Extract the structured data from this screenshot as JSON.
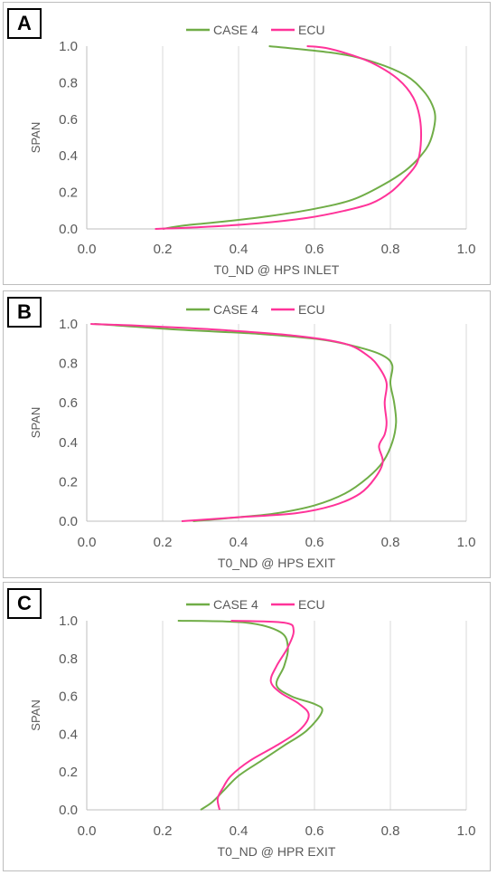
{
  "panels": [
    {
      "label": "A"
    },
    {
      "label": "B"
    },
    {
      "label": "C"
    }
  ],
  "chart_data": [
    {
      "type": "line",
      "title": "",
      "xlabel": "T0_ND @ HPS INLET",
      "ylabel": "SPAN",
      "xlim": [
        0,
        1
      ],
      "ylim": [
        0,
        1
      ],
      "xticks": [
        "0.0",
        "0.2",
        "0.4",
        "0.6",
        "0.8",
        "1.0"
      ],
      "yticks": [
        "0.0",
        "0.2",
        "0.4",
        "0.6",
        "0.8",
        "1.0"
      ],
      "grid": "vertical",
      "legend": "top-center",
      "series": [
        {
          "name": "CASE 4",
          "color": "#70ad47",
          "x": [
            0.2,
            0.26,
            0.36,
            0.48,
            0.6,
            0.7,
            0.78,
            0.84,
            0.88,
            0.905,
            0.918,
            0.91,
            0.885,
            0.84,
            0.76,
            0.66,
            0.48
          ],
          "y": [
            0.0,
            0.02,
            0.04,
            0.07,
            0.11,
            0.16,
            0.24,
            0.32,
            0.4,
            0.48,
            0.6,
            0.68,
            0.76,
            0.84,
            0.91,
            0.96,
            1.0
          ]
        },
        {
          "name": "ECU",
          "color": "#ff3399",
          "x": [
            0.18,
            0.3,
            0.45,
            0.58,
            0.68,
            0.75,
            0.8,
            0.84,
            0.87,
            0.88,
            0.878,
            0.86,
            0.82,
            0.76,
            0.7,
            0.63,
            0.58
          ],
          "y": [
            0.0,
            0.01,
            0.03,
            0.06,
            0.1,
            0.14,
            0.2,
            0.28,
            0.36,
            0.46,
            0.6,
            0.72,
            0.82,
            0.9,
            0.95,
            0.99,
            1.0
          ]
        }
      ]
    },
    {
      "type": "line",
      "title": "",
      "xlabel": "T0_ND @ HPS EXIT",
      "ylabel": "SPAN",
      "xlim": [
        0,
        1
      ],
      "ylim": [
        0,
        1
      ],
      "xticks": [
        "0.0",
        "0.2",
        "0.4",
        "0.6",
        "0.8",
        "1.0"
      ],
      "yticks": [
        "0.0",
        "0.2",
        "0.4",
        "0.6",
        "0.8",
        "1.0"
      ],
      "grid": "vertical",
      "legend": "top-center",
      "series": [
        {
          "name": "CASE 4",
          "color": "#70ad47",
          "x": [
            0.28,
            0.4,
            0.5,
            0.6,
            0.68,
            0.74,
            0.78,
            0.805,
            0.815,
            0.81,
            0.8,
            0.805,
            0.78,
            0.72,
            0.62,
            0.45,
            0.25,
            0.1,
            0.02
          ],
          "y": [
            0.0,
            0.02,
            0.04,
            0.08,
            0.14,
            0.22,
            0.3,
            0.4,
            0.5,
            0.6,
            0.7,
            0.79,
            0.84,
            0.88,
            0.92,
            0.95,
            0.97,
            0.99,
            1.0
          ]
        },
        {
          "name": "ECU",
          "color": "#ff3399",
          "x": [
            0.25,
            0.4,
            0.55,
            0.65,
            0.72,
            0.76,
            0.78,
            0.77,
            0.785,
            0.79,
            0.785,
            0.79,
            0.77,
            0.74,
            0.68,
            0.55,
            0.35,
            0.15,
            0.01
          ],
          "y": [
            0.0,
            0.02,
            0.04,
            0.08,
            0.14,
            0.22,
            0.3,
            0.38,
            0.44,
            0.5,
            0.6,
            0.7,
            0.78,
            0.84,
            0.9,
            0.94,
            0.97,
            0.99,
            1.0
          ]
        }
      ]
    },
    {
      "type": "line",
      "title": "",
      "xlabel": "T0_ND @ HPR EXIT",
      "ylabel": "SPAN",
      "xlim": [
        0,
        1
      ],
      "ylim": [
        0,
        1
      ],
      "xticks": [
        "0.0",
        "0.2",
        "0.4",
        "0.6",
        "0.8",
        "1.0"
      ],
      "yticks": [
        "0.0",
        "0.2",
        "0.4",
        "0.6",
        "0.8",
        "1.0"
      ],
      "grid": "vertical",
      "legend": "top-center",
      "series": [
        {
          "name": "CASE 4",
          "color": "#70ad47",
          "x": [
            0.3,
            0.33,
            0.36,
            0.4,
            0.46,
            0.52,
            0.58,
            0.62,
            0.6,
            0.54,
            0.5,
            0.52,
            0.53,
            0.51,
            0.42,
            0.24
          ],
          "y": [
            0.0,
            0.04,
            0.1,
            0.18,
            0.26,
            0.34,
            0.42,
            0.52,
            0.56,
            0.6,
            0.66,
            0.76,
            0.86,
            0.94,
            0.99,
            1.0
          ]
        },
        {
          "name": "ECU",
          "color": "#ff3399",
          "x": [
            0.35,
            0.345,
            0.36,
            0.38,
            0.43,
            0.5,
            0.56,
            0.585,
            0.56,
            0.51,
            0.485,
            0.5,
            0.53,
            0.545,
            0.52,
            0.38
          ],
          "y": [
            0.0,
            0.06,
            0.12,
            0.18,
            0.26,
            0.34,
            0.42,
            0.5,
            0.56,
            0.62,
            0.68,
            0.76,
            0.86,
            0.95,
            0.99,
            1.0
          ]
        }
      ]
    }
  ]
}
